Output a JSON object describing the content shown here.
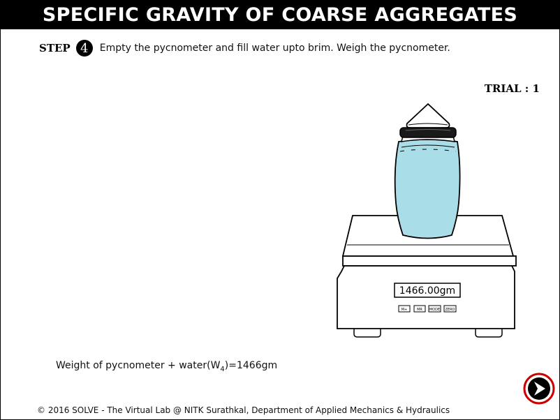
{
  "header": {
    "title": "SPECIFIC GRAVITY OF COARSE AGGREGATES"
  },
  "step": {
    "label": "STEP",
    "number": "4",
    "instruction": "Empty the pycnometer and fill water upto brim. Weigh the pycnometer."
  },
  "trial": {
    "label": "TRIAL : 1"
  },
  "scale": {
    "display_value": "1466.00gm",
    "buttons": [
      "M+",
      "MR",
      "MODE",
      "ZERO"
    ]
  },
  "jar": {
    "water_color": "#a9dde8"
  },
  "result": {
    "text_prefix": "Weight of pycnometer + water(W",
    "subscript": "4",
    "text_suffix": ")=1466gm"
  },
  "footer": {
    "text": "© 2016 SOLVE - The Virtual Lab @ NITK Surathkal, Department of Applied Mechanics & Hydraulics"
  },
  "next_button": {
    "icon": "next-arrow-icon",
    "ring_color": "#cc0000"
  }
}
